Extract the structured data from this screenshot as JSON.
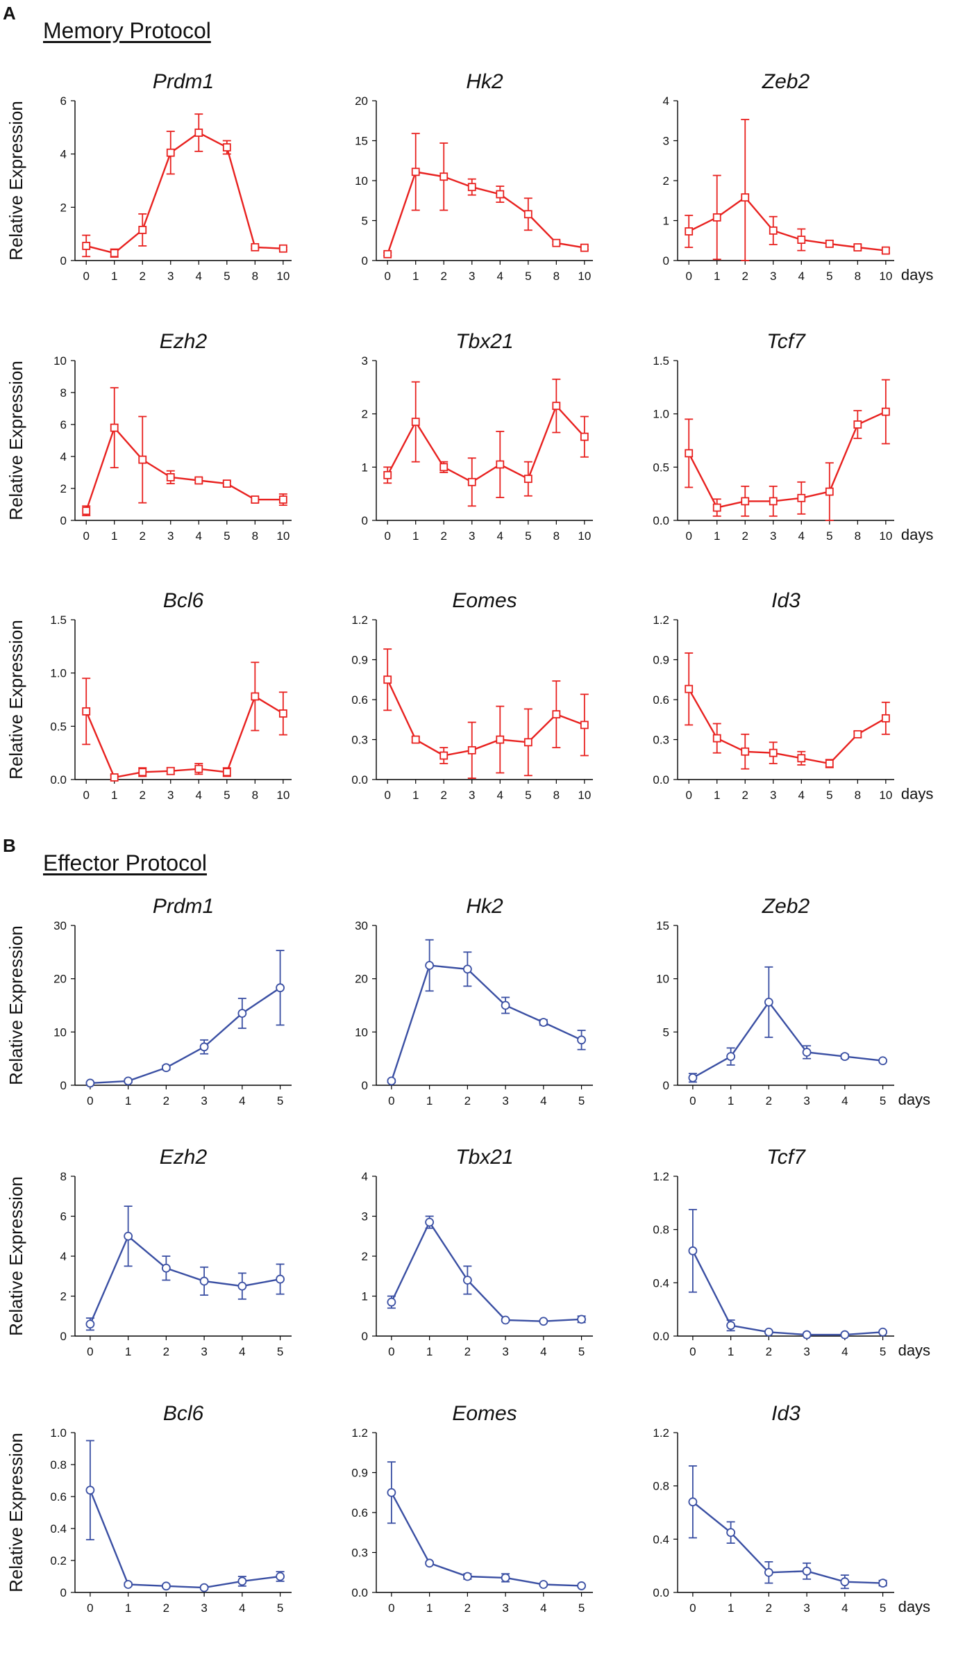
{
  "figure": {
    "panel_a_letter": "A",
    "panel_b_letter": "B",
    "memory_title": "Memory Protocol",
    "effector_title": "Effector Protocol",
    "ylabel": "Relative Expression",
    "x_unit_label": "days",
    "memory_color": "#e8211f",
    "effector_color": "#3a4fa3"
  },
  "chart_data": [
    {
      "type": "line",
      "protocol": "memory",
      "title": "Prdm1",
      "categories": [
        "0",
        "1",
        "2",
        "3",
        "4",
        "5",
        "8",
        "10"
      ],
      "values": [
        0.55,
        0.28,
        1.15,
        4.05,
        4.8,
        4.25,
        0.5,
        0.45
      ],
      "errors": [
        0.4,
        0.15,
        0.6,
        0.8,
        0.7,
        0.25,
        0.05,
        0.05
      ],
      "ylim": [
        0,
        6
      ],
      "yticks": [
        "0",
        "2",
        "4",
        "6"
      ],
      "xlabel": "",
      "ylabel": "Relative Expression"
    },
    {
      "type": "line",
      "protocol": "memory",
      "title": "Hk2",
      "categories": [
        "0",
        "1",
        "2",
        "3",
        "4",
        "5",
        "8",
        "10"
      ],
      "values": [
        0.8,
        11.1,
        10.5,
        9.2,
        8.3,
        5.8,
        2.2,
        1.6
      ],
      "errors": [
        0.2,
        4.8,
        4.2,
        1.0,
        1.0,
        2.0,
        0.2,
        0.2
      ],
      "ylim": [
        0,
        20
      ],
      "yticks": [
        "0",
        "5",
        "10",
        "15",
        "20"
      ],
      "xlabel": "",
      "ylabel": ""
    },
    {
      "type": "line",
      "protocol": "memory",
      "title": "Zeb2",
      "categories": [
        "0",
        "1",
        "2",
        "3",
        "4",
        "5",
        "8",
        "10"
      ],
      "values": [
        0.73,
        1.08,
        1.58,
        0.75,
        0.52,
        0.42,
        0.33,
        0.25
      ],
      "errors": [
        0.4,
        1.05,
        1.95,
        0.35,
        0.27,
        0.08,
        0.06,
        0.06
      ],
      "ylim": [
        0,
        4
      ],
      "yticks": [
        "0",
        "1",
        "2",
        "3",
        "4"
      ],
      "xlabel": "",
      "ylabel": "",
      "xunit": "days"
    },
    {
      "type": "line",
      "protocol": "memory",
      "title": "Ezh2",
      "categories": [
        "0",
        "1",
        "2",
        "3",
        "4",
        "5",
        "8",
        "10"
      ],
      "values": [
        0.6,
        5.8,
        3.8,
        2.7,
        2.5,
        2.3,
        1.3,
        1.3
      ],
      "errors": [
        0.3,
        2.5,
        2.7,
        0.4,
        0.15,
        0.15,
        0.15,
        0.35
      ],
      "ylim": [
        0,
        10
      ],
      "yticks": [
        "0",
        "2",
        "4",
        "6",
        "8",
        "10"
      ],
      "xlabel": "",
      "ylabel": "Relative Expression"
    },
    {
      "type": "line",
      "protocol": "memory",
      "title": "Tbx21",
      "categories": [
        "0",
        "1",
        "2",
        "3",
        "4",
        "5",
        "8",
        "10"
      ],
      "values": [
        0.85,
        1.85,
        1.0,
        0.72,
        1.05,
        0.78,
        2.15,
        1.57
      ],
      "errors": [
        0.15,
        0.75,
        0.1,
        0.45,
        0.62,
        0.32,
        0.5,
        0.38
      ],
      "ylim": [
        0,
        3
      ],
      "yticks": [
        "0",
        "1",
        "2",
        "3"
      ],
      "xlabel": "",
      "ylabel": ""
    },
    {
      "type": "line",
      "protocol": "memory",
      "title": "Tcf7",
      "categories": [
        "0",
        "1",
        "2",
        "3",
        "4",
        "5",
        "8",
        "10"
      ],
      "values": [
        0.63,
        0.12,
        0.18,
        0.18,
        0.21,
        0.27,
        0.9,
        1.02
      ],
      "errors": [
        0.32,
        0.08,
        0.14,
        0.14,
        0.15,
        0.27,
        0.13,
        0.3
      ],
      "ylim": [
        0,
        1.5
      ],
      "yticks": [
        "0.0",
        "0.5",
        "1.0",
        "1.5"
      ],
      "xlabel": "",
      "ylabel": "",
      "xunit": "days"
    },
    {
      "type": "line",
      "protocol": "memory",
      "title": "Bcl6",
      "categories": [
        "0",
        "1",
        "2",
        "3",
        "4",
        "5",
        "8",
        "10"
      ],
      "values": [
        0.64,
        0.02,
        0.07,
        0.08,
        0.1,
        0.07,
        0.78,
        0.62
      ],
      "errors": [
        0.31,
        0.02,
        0.04,
        0.03,
        0.05,
        0.04,
        0.32,
        0.2
      ],
      "ylim": [
        0,
        1.5
      ],
      "yticks": [
        "0.0",
        "0.5",
        "1.0",
        "1.5"
      ],
      "xlabel": "",
      "ylabel": "Relative Expression"
    },
    {
      "type": "line",
      "protocol": "memory",
      "title": "Eomes",
      "categories": [
        "0",
        "1",
        "2",
        "3",
        "4",
        "5",
        "8",
        "10"
      ],
      "values": [
        0.75,
        0.3,
        0.18,
        0.22,
        0.3,
        0.28,
        0.49,
        0.41
      ],
      "errors": [
        0.23,
        0.02,
        0.06,
        0.21,
        0.25,
        0.25,
        0.25,
        0.23
      ],
      "ylim": [
        0,
        1.2
      ],
      "yticks": [
        "0.0",
        "0.3",
        "0.6",
        "0.9",
        "1.2"
      ],
      "xlabel": "",
      "ylabel": ""
    },
    {
      "type": "line",
      "protocol": "memory",
      "title": "Id3",
      "categories": [
        "0",
        "1",
        "2",
        "3",
        "4",
        "5",
        "8",
        "10"
      ],
      "values": [
        0.68,
        0.31,
        0.21,
        0.2,
        0.16,
        0.12,
        0.34,
        0.46
      ],
      "errors": [
        0.27,
        0.11,
        0.13,
        0.08,
        0.05,
        0.03,
        0.02,
        0.12
      ],
      "ylim": [
        0,
        1.2
      ],
      "yticks": [
        "0.0",
        "0.3",
        "0.6",
        "0.9",
        "1.2"
      ],
      "xlabel": "",
      "ylabel": "",
      "xunit": "days"
    },
    {
      "type": "line",
      "protocol": "effector",
      "title": "Prdm1",
      "categories": [
        "0",
        "1",
        "2",
        "3",
        "4",
        "5"
      ],
      "values": [
        0.4,
        0.8,
        3.3,
        7.2,
        13.5,
        18.3
      ],
      "errors": [
        0.2,
        0.3,
        0.4,
        1.3,
        2.8,
        7.0
      ],
      "ylim": [
        0,
        30
      ],
      "yticks": [
        "0",
        "10",
        "20",
        "30"
      ],
      "xlabel": "",
      "ylabel": "Relative Expression"
    },
    {
      "type": "line",
      "protocol": "effector",
      "title": "Hk2",
      "categories": [
        "0",
        "1",
        "2",
        "3",
        "4",
        "5"
      ],
      "values": [
        0.8,
        22.5,
        21.8,
        15.0,
        11.8,
        8.5
      ],
      "errors": [
        0.3,
        4.8,
        3.2,
        1.5,
        0.5,
        1.8
      ],
      "ylim": [
        0,
        30
      ],
      "yticks": [
        "0",
        "10",
        "20",
        "30"
      ],
      "xlabel": "",
      "ylabel": ""
    },
    {
      "type": "line",
      "protocol": "effector",
      "title": "Zeb2",
      "categories": [
        "0",
        "1",
        "2",
        "3",
        "4",
        "5"
      ],
      "values": [
        0.7,
        2.7,
        7.8,
        3.1,
        2.7,
        2.3
      ],
      "errors": [
        0.4,
        0.8,
        3.3,
        0.6,
        0.2,
        0.1
      ],
      "ylim": [
        0,
        15
      ],
      "yticks": [
        "0",
        "5",
        "10",
        "15"
      ],
      "xlabel": "",
      "ylabel": "",
      "xunit": "days"
    },
    {
      "type": "line",
      "protocol": "effector",
      "title": "Ezh2",
      "categories": [
        "0",
        "1",
        "2",
        "3",
        "4",
        "5"
      ],
      "values": [
        0.6,
        5.0,
        3.4,
        2.75,
        2.5,
        2.85
      ],
      "errors": [
        0.3,
        1.5,
        0.6,
        0.7,
        0.65,
        0.75
      ],
      "ylim": [
        0,
        8
      ],
      "yticks": [
        "0",
        "2",
        "4",
        "6",
        "8"
      ],
      "xlabel": "",
      "ylabel": "Relative Expression"
    },
    {
      "type": "line",
      "protocol": "effector",
      "title": "Tbx21",
      "categories": [
        "0",
        "1",
        "2",
        "3",
        "4",
        "5"
      ],
      "values": [
        0.85,
        2.85,
        1.4,
        0.4,
        0.37,
        0.42
      ],
      "errors": [
        0.15,
        0.15,
        0.35,
        0.03,
        0.03,
        0.08
      ],
      "ylim": [
        0,
        4
      ],
      "yticks": [
        "0",
        "1",
        "2",
        "3",
        "4"
      ],
      "xlabel": "",
      "ylabel": ""
    },
    {
      "type": "line",
      "protocol": "effector",
      "title": "Tcf7",
      "categories": [
        "0",
        "1",
        "2",
        "3",
        "4",
        "5"
      ],
      "values": [
        0.64,
        0.08,
        0.03,
        0.01,
        0.01,
        0.03
      ],
      "errors": [
        0.31,
        0.04,
        0.01,
        0.01,
        0.01,
        0.01
      ],
      "ylim": [
        0,
        1.2
      ],
      "yticks": [
        "0.0",
        "0.4",
        "0.8",
        "1.2"
      ],
      "xlabel": "",
      "ylabel": "",
      "xunit": "days"
    },
    {
      "type": "line",
      "protocol": "effector",
      "title": "Bcl6",
      "categories": [
        "0",
        "1",
        "2",
        "3",
        "4",
        "5"
      ],
      "values": [
        0.64,
        0.05,
        0.04,
        0.03,
        0.07,
        0.1
      ],
      "errors": [
        0.31,
        0.01,
        0.01,
        0.01,
        0.03,
        0.03
      ],
      "ylim": [
        0,
        1.0
      ],
      "yticks": [
        "0",
        "0.2",
        "0.4",
        "0.6",
        "0.8",
        "1.0"
      ],
      "xlabel": "",
      "ylabel": "Relative Expression"
    },
    {
      "type": "line",
      "protocol": "effector",
      "title": "Eomes",
      "categories": [
        "0",
        "1",
        "2",
        "3",
        "4",
        "5"
      ],
      "values": [
        0.75,
        0.22,
        0.12,
        0.11,
        0.06,
        0.05
      ],
      "errors": [
        0.23,
        0.01,
        0.02,
        0.03,
        0.01,
        0.01
      ],
      "ylim": [
        0,
        1.2
      ],
      "yticks": [
        "0.0",
        "0.3",
        "0.6",
        "0.9",
        "1.2"
      ],
      "xlabel": "",
      "ylabel": ""
    },
    {
      "type": "line",
      "protocol": "effector",
      "title": "Id3",
      "categories": [
        "0",
        "1",
        "2",
        "3",
        "4",
        "5"
      ],
      "values": [
        0.68,
        0.45,
        0.15,
        0.16,
        0.08,
        0.07
      ],
      "errors": [
        0.27,
        0.08,
        0.08,
        0.06,
        0.05,
        0.02
      ],
      "ylim": [
        0,
        1.2
      ],
      "yticks": [
        "0.0",
        "0.4",
        "0.8",
        "1.2"
      ],
      "xlabel": "",
      "ylabel": "",
      "xunit": "days"
    }
  ]
}
